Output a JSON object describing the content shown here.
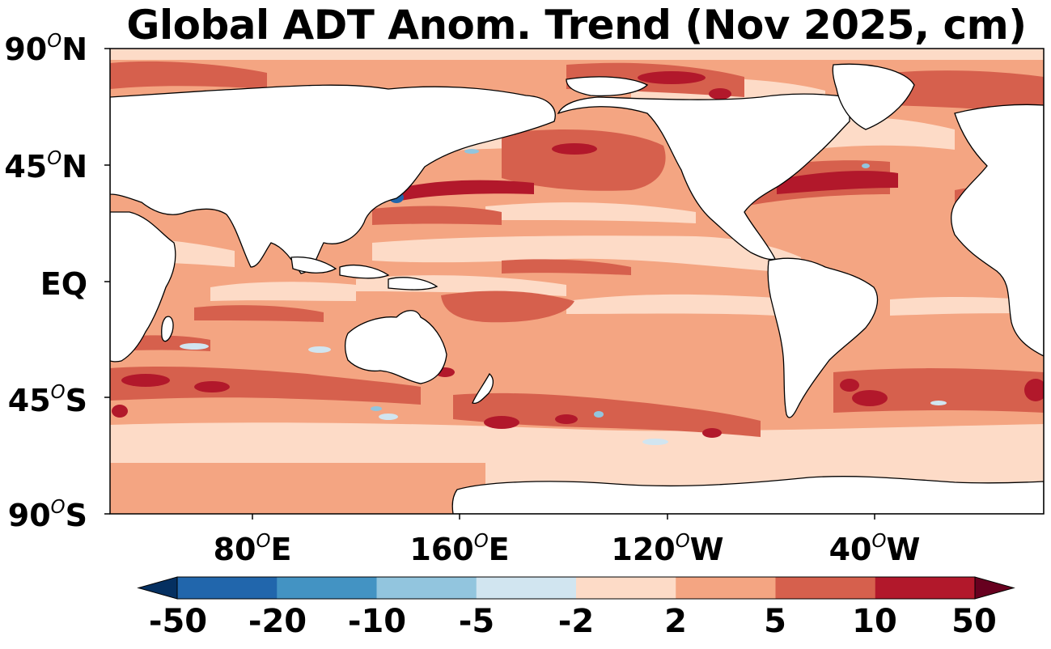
{
  "title": "Global ADT Anom. Trend (Nov 2025, cm)",
  "lat_labels": [
    {
      "deg": "90",
      "sup": "O",
      "hem": "N"
    },
    {
      "deg": "45",
      "sup": "O",
      "hem": "N"
    },
    {
      "deg": "",
      "sup": "",
      "hem": "EQ"
    },
    {
      "deg": "45",
      "sup": "O",
      "hem": "S"
    },
    {
      "deg": "90",
      "sup": "O",
      "hem": "S"
    }
  ],
  "lon_labels": [
    {
      "deg": "80",
      "sup": "O",
      "hem": "E"
    },
    {
      "deg": "160",
      "sup": "O",
      "hem": "E"
    },
    {
      "deg": "120",
      "sup": "O",
      "hem": "W"
    },
    {
      "deg": "40",
      "sup": "O",
      "hem": "W"
    }
  ],
  "colorbar": {
    "labels": [
      "-50",
      "-20",
      "-10",
      "-5",
      "-2",
      "2",
      "5",
      "10",
      "50"
    ],
    "colors": [
      "#053061",
      "#2166ac",
      "#4393c3",
      "#92c5de",
      "#d1e5f0",
      "#fddbc7",
      "#f4a582",
      "#d6604d",
      "#b2182b",
      "#67001f"
    ]
  },
  "palette": {
    "land": "#ffffff",
    "base": "#f4a582",
    "light": "#fddbc7",
    "mid": "#d6604d",
    "strong": "#b2182b",
    "cool": "#d1e5f0",
    "blue": "#92c5de",
    "deep": "#2166ac"
  }
}
